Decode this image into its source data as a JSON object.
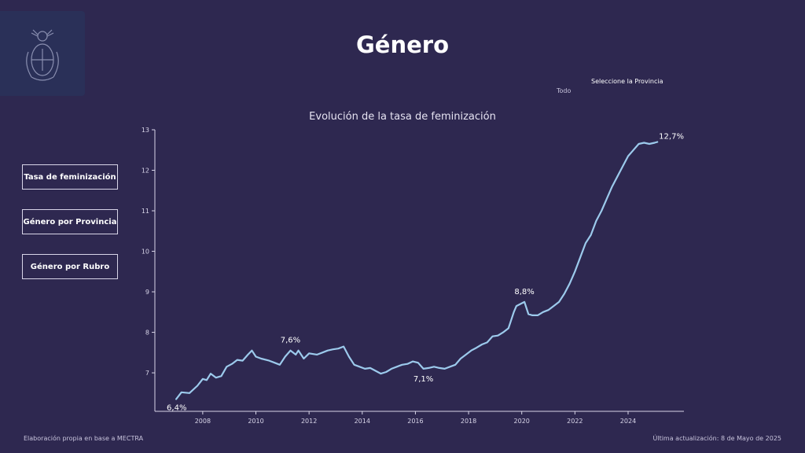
{
  "header": {
    "title": "Género",
    "filter_label": "Seleccione la Provincia",
    "filter_value": "Todo"
  },
  "nav": {
    "buttons": [
      {
        "label": "Tasa de feminización"
      },
      {
        "label": "Género por Provincia"
      },
      {
        "label": "Género por Rubro"
      }
    ]
  },
  "footer": {
    "source": "Elaboración propia en base a MECTRA",
    "updated": "Última actualización: 8 de Mayo de 2025"
  },
  "colors": {
    "background": "#2e2850",
    "line": "#9ccaec",
    "axis": "#d8d5e8"
  },
  "logo": {
    "icon": "coat-of-arms-icon"
  },
  "chart_data": {
    "type": "line",
    "title": "Evolución de la tasa de feminización",
    "xlabel": "",
    "ylabel": "",
    "xlim": [
      2006.2,
      2026.1
    ],
    "ylim": [
      6.05,
      13.0
    ],
    "x_ticks": [
      2008,
      2010,
      2012,
      2014,
      2016,
      2018,
      2020,
      2022,
      2024
    ],
    "y_ticks": [
      7,
      8,
      9,
      10,
      11,
      12,
      13
    ],
    "grid": false,
    "series": [
      {
        "x": [
          2007.0,
          2007.2,
          2007.5,
          2007.8,
          2008.0,
          2008.15,
          2008.3,
          2008.5,
          2008.7,
          2008.9,
          2009.1,
          2009.3,
          2009.5,
          2009.7,
          2009.85,
          2010.0,
          2010.2,
          2010.5,
          2010.7,
          2010.9,
          2011.1,
          2011.3,
          2011.5,
          2011.6,
          2011.8,
          2012.0,
          2012.3,
          2012.5,
          2012.7,
          2012.9,
          2013.1,
          2013.3,
          2013.5,
          2013.7,
          2013.9,
          2014.1,
          2014.3,
          2014.5,
          2014.7,
          2014.9,
          2015.1,
          2015.3,
          2015.5,
          2015.7,
          2015.9,
          2016.1,
          2016.3,
          2016.5,
          2016.7,
          2016.9,
          2017.1,
          2017.3,
          2017.5,
          2017.7,
          2017.9,
          2018.1,
          2018.3,
          2018.5,
          2018.7,
          2018.9,
          2019.1,
          2019.3,
          2019.5,
          2019.7,
          2019.8,
          2019.95,
          2020.1,
          2020.25,
          2020.4,
          2020.6,
          2020.8,
          2021.0,
          2021.2,
          2021.4,
          2021.6,
          2021.8,
          2022.0,
          2022.2,
          2022.4,
          2022.6,
          2022.8,
          2023.0,
          2023.2,
          2023.4,
          2023.6,
          2023.8,
          2024.0,
          2024.2,
          2024.4,
          2024.6,
          2024.8,
          2025.0,
          2025.1
        ],
        "values": [
          6.35,
          6.52,
          6.5,
          6.68,
          6.85,
          6.82,
          6.98,
          6.88,
          6.92,
          7.15,
          7.22,
          7.32,
          7.3,
          7.45,
          7.55,
          7.4,
          7.35,
          7.3,
          7.25,
          7.2,
          7.4,
          7.55,
          7.45,
          7.55,
          7.35,
          7.48,
          7.45,
          7.5,
          7.55,
          7.58,
          7.6,
          7.65,
          7.4,
          7.2,
          7.15,
          7.1,
          7.12,
          7.05,
          6.98,
          7.02,
          7.1,
          7.15,
          7.2,
          7.22,
          7.28,
          7.25,
          7.1,
          7.12,
          7.15,
          7.12,
          7.1,
          7.15,
          7.2,
          7.35,
          7.45,
          7.55,
          7.62,
          7.7,
          7.75,
          7.9,
          7.92,
          8.0,
          8.1,
          8.5,
          8.65,
          8.7,
          8.75,
          8.45,
          8.42,
          8.42,
          8.5,
          8.55,
          8.65,
          8.75,
          8.95,
          9.2,
          9.5,
          9.85,
          10.2,
          10.4,
          10.75,
          11.0,
          11.3,
          11.6,
          11.85,
          12.1,
          12.35,
          12.5,
          12.65,
          12.68,
          12.65,
          12.68,
          12.7
        ]
      }
    ],
    "annotations": [
      {
        "x": 2007.0,
        "y": 6.35,
        "text": "6,4%"
      },
      {
        "x": 2011.3,
        "y": 7.55,
        "text": "7,6%"
      },
      {
        "x": 2016.3,
        "y": 7.1,
        "text": "7,1%"
      },
      {
        "x": 2020.1,
        "y": 8.75,
        "text": "8,8%"
      },
      {
        "x": 2025.1,
        "y": 12.7,
        "text": "12,7%"
      }
    ]
  }
}
